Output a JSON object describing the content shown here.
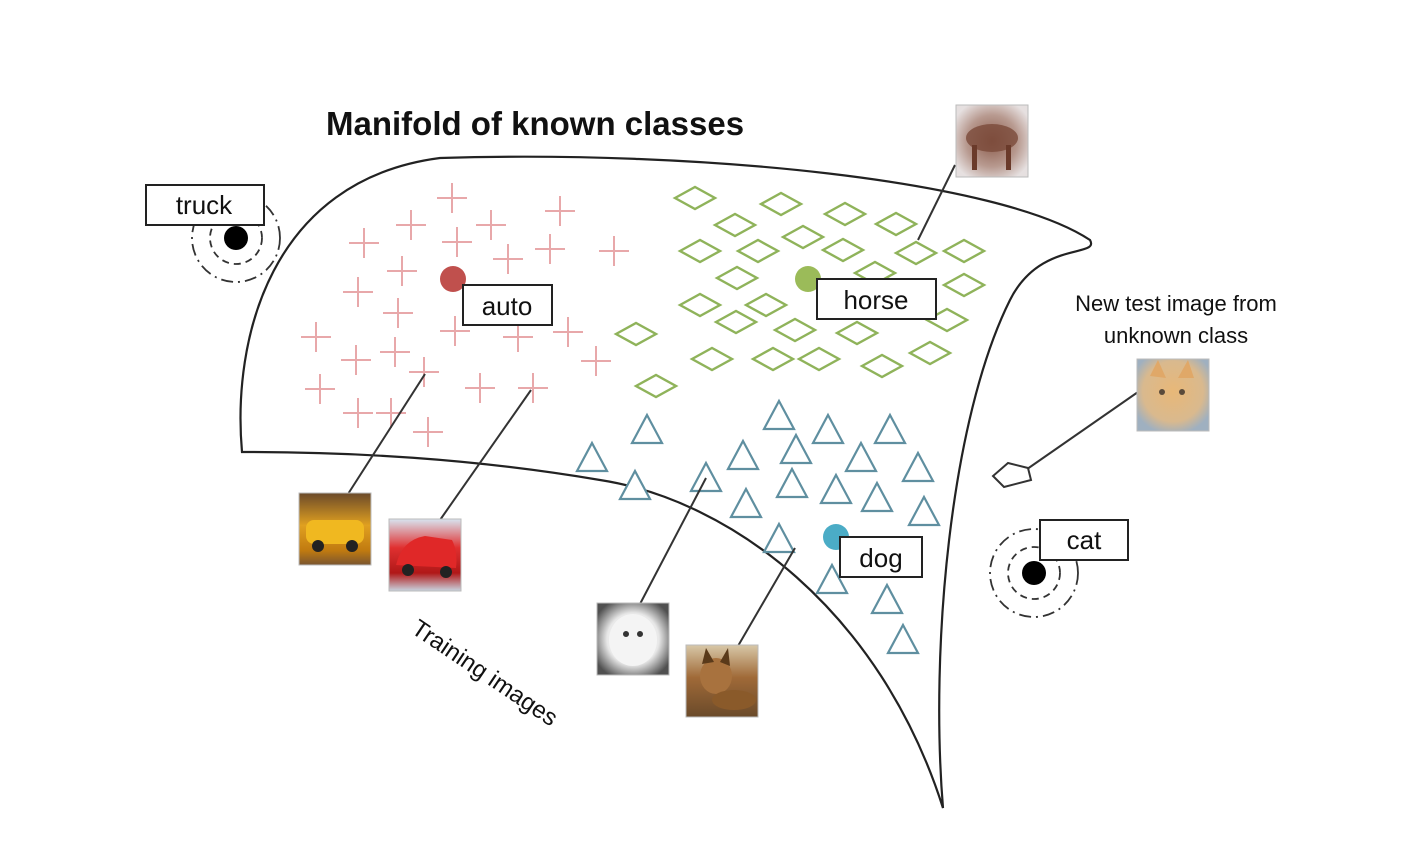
{
  "title": "Manifold of known classes",
  "caption_training": "Training images",
  "caption_test": [
    "New test image from",
    "unknown class"
  ],
  "classes": {
    "known": [
      {
        "id": "auto",
        "label": "auto",
        "color": "#c0504d",
        "marker": "plus",
        "marker_color": "#e8a8aa"
      },
      {
        "id": "horse",
        "label": "horse",
        "color": "#9bbb59",
        "marker": "diamond",
        "marker_color": "#8fb35a"
      },
      {
        "id": "dog",
        "label": "dog",
        "color": "#4bacc6",
        "marker": "triangle",
        "marker_color": "#5f8fa0"
      }
    ],
    "unknown": [
      {
        "id": "truck",
        "label": "truck",
        "color": "#000000"
      },
      {
        "id": "cat",
        "label": "cat",
        "color": "#000000"
      }
    ]
  },
  "thumbnails": [
    "horse-photo",
    "cat-photo",
    "yellow-car-photo",
    "red-car-photo",
    "white-dog-photo",
    "brown-dog-photo"
  ],
  "colors": {
    "manifold_stroke": "#222222",
    "leader_line": "#333333",
    "test_marker": "#333333"
  }
}
